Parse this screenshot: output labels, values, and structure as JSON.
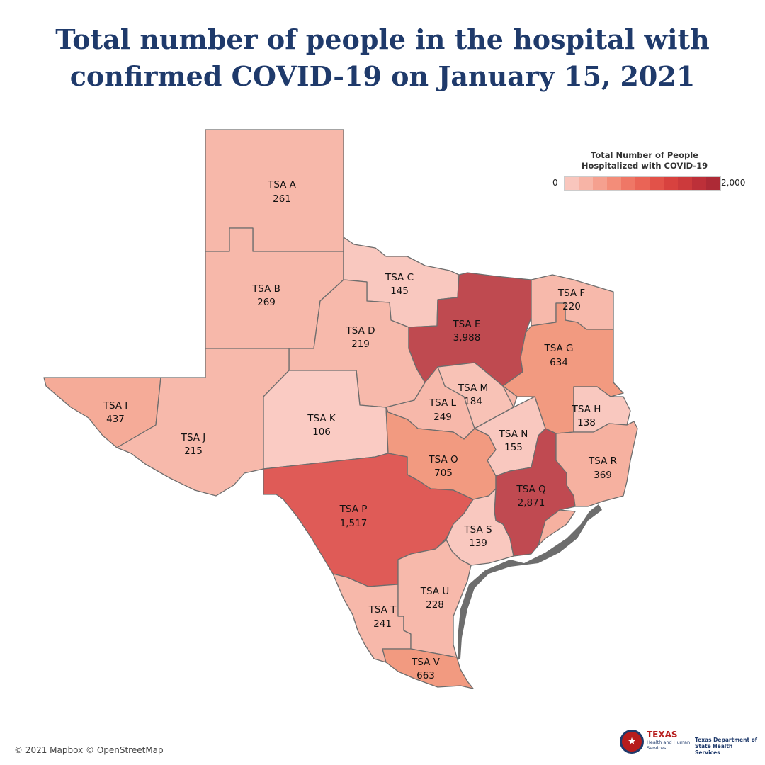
{
  "title": {
    "line1": "Total number of people in the hospital with",
    "line2": "confirmed COVID-19 on January 15, 2021"
  },
  "legend": {
    "title_line1": "Total Number of People",
    "title_line2": "Hospitalized with COVID-19",
    "min_label": "0",
    "max_label": "2,000",
    "domain": [
      0,
      2000
    ],
    "colors": [
      "#f9c6bd",
      "#f7b4a6",
      "#f5a08f",
      "#f38d79",
      "#ef7766",
      "#ea6456",
      "#e25249",
      "#d8423f",
      "#cc3a3c",
      "#bd3039",
      "#ad2a36"
    ]
  },
  "regions": [
    {
      "name": "TSA A",
      "value_label": "261",
      "value": 261
    },
    {
      "name": "TSA B",
      "value_label": "269",
      "value": 269
    },
    {
      "name": "TSA C",
      "value_label": "145",
      "value": 145
    },
    {
      "name": "TSA D",
      "value_label": "219",
      "value": 219
    },
    {
      "name": "TSA E",
      "value_label": "3,988",
      "value": 3988
    },
    {
      "name": "TSA F",
      "value_label": "220",
      "value": 220
    },
    {
      "name": "TSA G",
      "value_label": "634",
      "value": 634
    },
    {
      "name": "TSA H",
      "value_label": "138",
      "value": 138
    },
    {
      "name": "TSA I",
      "value_label": "437",
      "value": 437
    },
    {
      "name": "TSA J",
      "value_label": "215",
      "value": 215
    },
    {
      "name": "TSA K",
      "value_label": "106",
      "value": 106
    },
    {
      "name": "TSA L",
      "value_label": "249",
      "value": 249
    },
    {
      "name": "TSA M",
      "value_label": "184",
      "value": 184
    },
    {
      "name": "TSA N",
      "value_label": "155",
      "value": 155
    },
    {
      "name": "TSA O",
      "value_label": "705",
      "value": 705
    },
    {
      "name": "TSA P",
      "value_label": "1,517",
      "value": 1517
    },
    {
      "name": "TSA Q",
      "value_label": "2,871",
      "value": 2871
    },
    {
      "name": "TSA R",
      "value_label": "369",
      "value": 369
    },
    {
      "name": "TSA S",
      "value_label": "139",
      "value": 139
    },
    {
      "name": "TSA T",
      "value_label": "241",
      "value": 241
    },
    {
      "name": "TSA U",
      "value_label": "228",
      "value": 228
    },
    {
      "name": "TSA V",
      "value_label": "663",
      "value": 663
    }
  ],
  "fill_colors": {
    "TSA A": "#f7b8aa",
    "TSA B": "#f7b8aa",
    "TSA C": "#f9c8bf",
    "TSA D": "#f7b9ab",
    "TSA E": "#bf4a50",
    "TSA F": "#f7b9ab",
    "TSA G": "#f29a80",
    "TSA H": "#f9c8bf",
    "TSA I": "#f5ab98",
    "TSA J": "#f7b9ab",
    "TSA K": "#facbc3",
    "TSA L": "#f7b8aa",
    "TSA M": "#f8c2b6",
    "TSA N": "#f9c8bf",
    "TSA O": "#f29a80",
    "TSA P": "#df5b57",
    "TSA Q": "#c04a51",
    "TSA R": "#f6b1a0",
    "TSA S": "#f9c8bf",
    "TSA T": "#f7b8aa",
    "TSA U": "#f7b9ab",
    "TSA V": "#f29a80"
  },
  "attribution": "© 2021 Mapbox © OpenStreetMap",
  "logo": {
    "hhs_name": "TEXAS",
    "hhs_sub": "Health and Human Services",
    "dshs": "Texas Department of State Health Services",
    "seal_icon": "star-icon"
  }
}
